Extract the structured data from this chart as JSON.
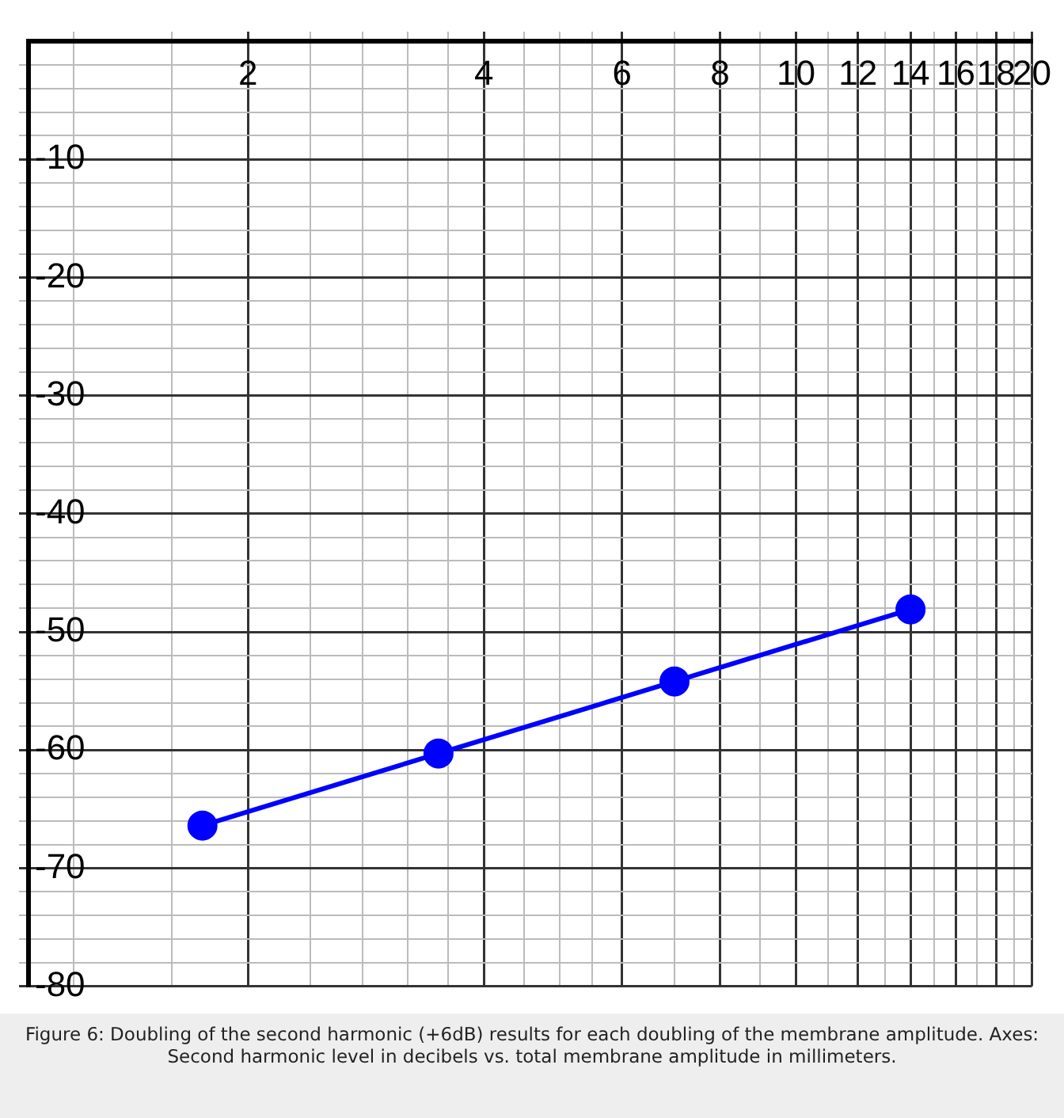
{
  "chart_data": {
    "type": "line",
    "annotations": [
      "Figure 6: Doubling of the second harmonic (+6dB) results for each doubling of the membrane amplitude. Axes: Second harmonic level in decibels vs. total membrane amplitude in millimeters."
    ],
    "x": [
      1.75,
      3.5,
      7,
      14
    ],
    "series": [
      {
        "color": "#0000ff",
        "values": [
          -66.4,
          -60.3,
          -54.2,
          -48.1
        ]
      }
    ],
    "log": "x",
    "xlim": [
      1.05,
      20
    ],
    "xticks": [
      {
        "value": 1.2,
        "label": null
      },
      {
        "value": 1.6,
        "label": null
      },
      2,
      {
        "value": 2.4,
        "label": null
      },
      {
        "value": 2.8,
        "label": null
      },
      {
        "value": 3.2,
        "label": null
      },
      {
        "value": 3.6,
        "label": null
      },
      4,
      {
        "value": 4.5,
        "label": null
      },
      {
        "value": 5,
        "label": null
      },
      {
        "value": 5.5,
        "label": null
      },
      6,
      {
        "value": 7,
        "label": null
      },
      8,
      {
        "value": 9,
        "label": null
      },
      10,
      {
        "value": 11,
        "label": null
      },
      12,
      {
        "value": 13,
        "label": null
      },
      14,
      {
        "value": 15,
        "label": null
      },
      16,
      {
        "value": 17,
        "label": null
      },
      18,
      {
        "value": 19,
        "label": null
      },
      20
    ],
    "ylim": [
      -80,
      0
    ],
    "yticks": [
      {
        "value": -2,
        "label": null
      },
      {
        "value": -4,
        "label": null
      },
      {
        "value": -6,
        "label": null
      },
      {
        "value": -8,
        "label": null
      },
      -10,
      {
        "value": -12,
        "label": null
      },
      {
        "value": -14,
        "label": null
      },
      {
        "value": -16,
        "label": null
      },
      {
        "value": -18,
        "label": null
      },
      -20,
      {
        "value": -22,
        "label": null
      },
      {
        "value": -24,
        "label": null
      },
      {
        "value": -26,
        "label": null
      },
      {
        "value": -28,
        "label": null
      },
      -30,
      {
        "value": -32,
        "label": null
      },
      {
        "value": -34,
        "label": null
      },
      {
        "value": -36,
        "label": null
      },
      {
        "value": -38,
        "label": null
      },
      -40,
      {
        "value": -42,
        "label": null
      },
      {
        "value": -44,
        "label": null
      },
      {
        "value": -46,
        "label": null
      },
      {
        "value": -48,
        "label": null
      },
      -50,
      {
        "value": -52,
        "label": null
      },
      {
        "value": -54,
        "label": null
      },
      {
        "value": -56,
        "label": null
      },
      {
        "value": -58,
        "label": null
      },
      -60,
      {
        "value": -62,
        "label": null
      },
      {
        "value": -64,
        "label": null
      },
      {
        "value": -66,
        "label": null
      },
      {
        "value": -68,
        "label": null
      },
      -70,
      {
        "value": -72,
        "label": null
      },
      {
        "value": -74,
        "label": null
      },
      {
        "value": -76,
        "label": null
      },
      {
        "value": -78,
        "label": null
      },
      -80
    ],
    "grid": true,
    "legend": false,
    "marker": "circle",
    "line_style": "solid"
  }
}
